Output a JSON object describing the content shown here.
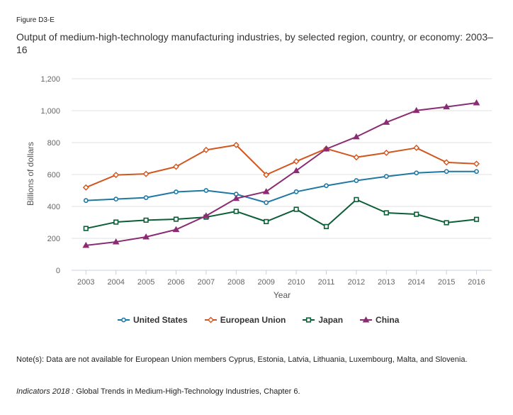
{
  "figure_label": "Figure D3-E",
  "title": "Output of medium-high-technology manufacturing industries, by selected region, country, or economy: 2003–16",
  "note": "Note(s): Data are not available for European Union members Cyprus, Estonia, Latvia, Lithuania, Luxembourg, Malta, and Slovenia.",
  "source": {
    "italic": "Indicators 2018 :",
    "text": " Global Trends in Medium-High-Technology Industries, Chapter 6."
  },
  "chart_data": {
    "type": "line",
    "title": "Output of medium-high-technology manufacturing industries, by selected region, country, or economy: 2003–16",
    "xlabel": "Year",
    "ylabel": "Billions of dollars",
    "ylim": [
      0,
      1200
    ],
    "yticks": [
      0,
      200,
      400,
      600,
      800,
      1000,
      1200
    ],
    "ytick_labels": [
      "0",
      "200",
      "400",
      "600",
      "800",
      "1,000",
      "1,200"
    ],
    "grid": true,
    "legend_position": "bottom",
    "categories": [
      "2003",
      "2004",
      "2005",
      "2006",
      "2007",
      "2008",
      "2009",
      "2010",
      "2011",
      "2012",
      "2013",
      "2014",
      "2015",
      "2016"
    ],
    "series": [
      {
        "name": "United States",
        "color": "#1f78a3",
        "marker": "circle",
        "values": [
          437,
          446,
          455,
          491,
          500,
          477,
          424,
          492,
          530,
          562,
          588,
          610,
          619,
          619
        ]
      },
      {
        "name": "European Union",
        "color": "#d2561e",
        "marker": "diamond",
        "values": [
          519,
          597,
          604,
          649,
          754,
          785,
          598,
          682,
          762,
          708,
          736,
          767,
          676,
          667
        ]
      },
      {
        "name": "Japan",
        "color": "#0b5e35",
        "marker": "square",
        "values": [
          262,
          302,
          314,
          320,
          333,
          369,
          305,
          382,
          274,
          443,
          360,
          351,
          298,
          319
        ]
      },
      {
        "name": "China",
        "color": "#8b2c72",
        "marker": "triangle",
        "values": [
          156,
          178,
          209,
          255,
          341,
          450,
          493,
          624,
          760,
          836,
          927,
          1001,
          1024,
          1049
        ]
      }
    ]
  }
}
